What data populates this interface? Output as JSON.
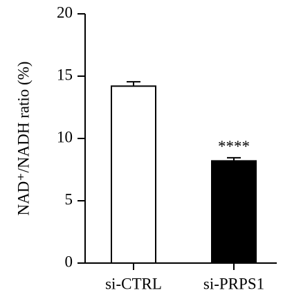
{
  "chart_data": {
    "type": "bar",
    "y_label": "NAD⁺/NADH ratio (%)",
    "categories": [
      "si-CTRL",
      "si-PRPS1"
    ],
    "values": [
      14.2,
      8.2
    ],
    "errors": [
      0.35,
      0.25
    ],
    "colors": [
      "#ffffff",
      "#000000"
    ],
    "value_annotations": [
      null,
      "****"
    ],
    "ylim": [
      0,
      20
    ],
    "yticks": [
      0,
      5,
      10,
      15,
      20
    ]
  }
}
